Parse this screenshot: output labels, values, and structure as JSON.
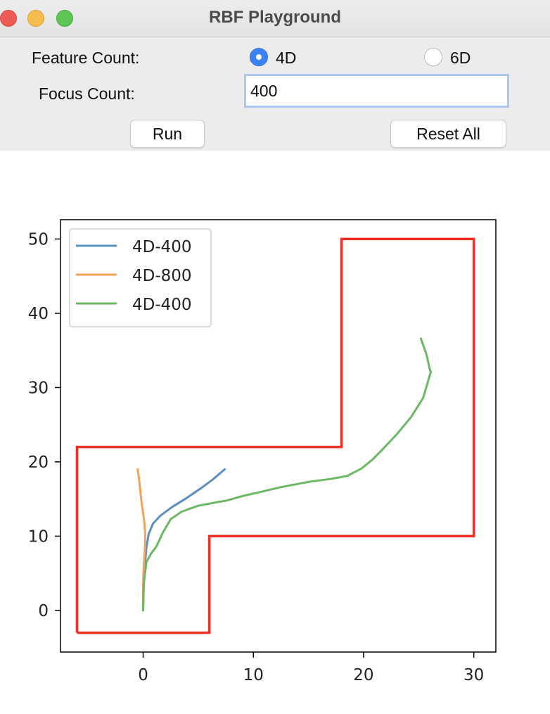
{
  "window": {
    "title": "RBF Playground"
  },
  "controls": {
    "feature_label": "Feature Count:",
    "options": [
      {
        "label": "4D",
        "selected": true
      },
      {
        "label": "6D",
        "selected": false
      }
    ],
    "focus_label": "Focus Count:",
    "focus_value": "400",
    "run_label": "Run",
    "reset_label": "Reset All"
  },
  "chart_data": {
    "type": "line",
    "xlim": [
      -7.5,
      32
    ],
    "ylim": [
      -5.6,
      52.6
    ],
    "xticks": [
      0,
      10,
      20,
      30
    ],
    "yticks": [
      0,
      10,
      20,
      30,
      40,
      50
    ],
    "grid": false,
    "legend": {
      "placement": "upper-left"
    },
    "boundary": {
      "color": "#ee3124",
      "points": [
        [
          -6,
          -3
        ],
        [
          6,
          -3
        ],
        [
          6,
          10
        ],
        [
          30,
          10
        ],
        [
          30,
          50
        ],
        [
          18,
          50
        ],
        [
          18,
          22
        ],
        [
          -6,
          22
        ],
        [
          -6,
          -3
        ]
      ]
    },
    "series": [
      {
        "name": "4D-400",
        "color": "#5a8fc3",
        "points": [
          [
            0,
            0
          ],
          [
            0.05,
            3
          ],
          [
            0.15,
            6
          ],
          [
            0.3,
            8.5
          ],
          [
            0.5,
            10.3
          ],
          [
            0.9,
            11.7
          ],
          [
            1.6,
            12.8
          ],
          [
            2.6,
            13.9
          ],
          [
            3.8,
            15
          ],
          [
            5.2,
            16.4
          ],
          [
            6.3,
            17.6
          ],
          [
            7.4,
            19
          ]
        ]
      },
      {
        "name": "4D-800",
        "color": "#f5a25b",
        "points": [
          [
            0,
            0
          ],
          [
            0,
            3
          ],
          [
            0.05,
            6
          ],
          [
            0.15,
            8
          ],
          [
            0.2,
            10
          ],
          [
            0.1,
            12
          ],
          [
            -0.1,
            14
          ],
          [
            -0.25,
            16
          ],
          [
            -0.4,
            18
          ],
          [
            -0.5,
            19
          ]
        ]
      },
      {
        "name": "4D-400",
        "color": "#6cb864",
        "points": [
          [
            0,
            0
          ],
          [
            0.05,
            3.5
          ],
          [
            0.3,
            6.5
          ],
          [
            0.7,
            7.6
          ],
          [
            1.2,
            8.6
          ],
          [
            1.8,
            10.5
          ],
          [
            2.5,
            12.3
          ],
          [
            3.5,
            13.3
          ],
          [
            5,
            14.1
          ],
          [
            6.8,
            14.6
          ],
          [
            7.6,
            14.8
          ],
          [
            9,
            15.4
          ],
          [
            10.5,
            15.9
          ],
          [
            12.5,
            16.6
          ],
          [
            15,
            17.3
          ],
          [
            17,
            17.7
          ],
          [
            18.5,
            18.1
          ],
          [
            19.8,
            19.1
          ],
          [
            20.8,
            20.3
          ],
          [
            21.8,
            21.8
          ],
          [
            23,
            23.7
          ],
          [
            24.3,
            26
          ],
          [
            25.4,
            28.6
          ],
          [
            26.1,
            32.1
          ],
          [
            26,
            32.5
          ],
          [
            25.7,
            34.5
          ],
          [
            25.2,
            36.6
          ]
        ]
      }
    ]
  }
}
